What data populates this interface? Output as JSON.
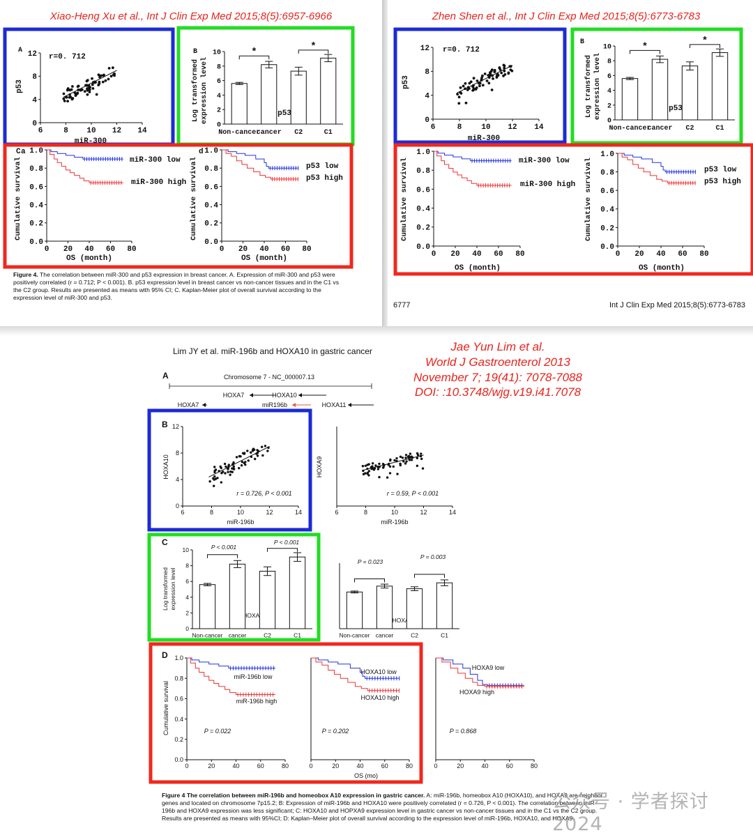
{
  "citations": {
    "top_left": "Xiao-Heng Xu et al., Int J Clin Exp Med 2015;8(5):6957-6966",
    "top_right": "Zhen Shen et al., Int J Clin Exp Med 2015;8(5):6773-6783",
    "bottom": [
      "Jae Yun Lim et al.",
      "World J Gastroenterol 2013",
      "November 7; 19(41): 7078-7088",
      "DOI: :10.3748/wjg.v19.i41.7078"
    ]
  },
  "colors": {
    "blue_box": "#1c2bd6",
    "green_box": "#22dd22",
    "red_box": "#f0281e",
    "low_curve": "#2233dd",
    "high_curve": "#ee3333",
    "citation": "#e8231c"
  },
  "xu": {
    "scatter": {
      "panel": "A",
      "r_label": "r=0. 712",
      "ylabel": "p53",
      "xlabel": "miR-300"
    },
    "bars": {
      "panel": "B",
      "ylabel": [
        "Log  transformed",
        "expression  level"
      ],
      "gene": "p53",
      "star": "*"
    },
    "km1": {
      "panel": "C",
      "sub": "a",
      "ylabel": "Cumulative  survival",
      "xlabel": "OS  (month)",
      "low": "miR-300  low",
      "high": "miR-300  high"
    },
    "km2": {
      "sub": "d",
      "ylabel": "Cumulative  survival",
      "xlabel": "OS  (month)",
      "low": "p53  low",
      "high": "p53  high"
    },
    "caption_title": "Figure 4.",
    "caption_text": " The correlation between miR-300 and p53 expression in breast cancer. A. Expression of miR-300 and p53 were positively correlated (r = 0.712; P < 0.001). B. p53 expression level in breast cancer vs non-cancer tissues and in the C1 vs the C2 group. Results are presented as means with 95% CI; C. Kaplan-Meier plot of overall survival according to the expression level of miR-300 and p53."
  },
  "shen": {
    "scatter": {
      "r_label": "r=0. 712",
      "ylabel": "p53",
      "xlabel": "miR-300"
    },
    "bars": {
      "panel": "B",
      "ylabel": [
        "Log  transformed",
        "expression  level"
      ],
      "gene": "p53",
      "star": "*"
    },
    "km1": {
      "ylabel": "Cumulative  survival",
      "xlabel": "OS  (month)",
      "low": "miR-300  low",
      "high": "miR-300  high"
    },
    "km2": {
      "ylabel": "Cumulative  survival",
      "xlabel": "OS  (month)",
      "low": "p53  low",
      "high": "p53  high"
    },
    "footer_page": "6777",
    "footer_journal": "Int J Clin Exp Med 2015;8(5):6773-6783"
  },
  "lim": {
    "running_head": "Lim JY et al. miR-196b and HOXA10 in gastric cancer",
    "panelA": {
      "label": "A",
      "chromosome": "Chromosome 7 - NC_000007.13",
      "genes": [
        "HOXA7",
        "HOXA10",
        "HOXA7",
        "miR196b",
        "HOXA11"
      ]
    },
    "panelB": {
      "label": "B",
      "left": {
        "ylabel": "HOXA10",
        "xlabel": "miR-196b",
        "stat": "r = 0.726, P < 0.001"
      },
      "right": {
        "ylabel": "HOXA9",
        "xlabel": "miR-196b",
        "stat": "r = 0.59, P < 0.001"
      }
    },
    "panelC": {
      "label": "C",
      "ylabel": [
        "Log transformed",
        "expression level"
      ],
      "left": {
        "gene": "HOXA10",
        "p1": "P < 0.001",
        "p2": "P < 0.001"
      },
      "right": {
        "gene": "HOXA9",
        "p1": "P = 0.023",
        "p2": "P = 0.003"
      }
    },
    "panelD": {
      "label": "D",
      "ylabel": "Cumulative survival",
      "xlabel": "OS (mo)",
      "km1": {
        "low": "miR-196b low",
        "high": "miR-196b high",
        "p": "P = 0.022"
      },
      "km2": {
        "low": "HOXA10 low",
        "high": "HOXA10 high",
        "p": "P = 0.202"
      },
      "km3": {
        "low": "HOXA9 low",
        "high": "HOXA9 high",
        "p": "P = 0.868"
      }
    },
    "caption_title": "Figure 4  The correlation between miR-196b and homeobox A10 expression in gastric cancer.",
    "caption_text": " A: miR-196b, homeobox A10 (HOXA10), and HOXA9 are neighbor genes and located on chromosome 7p15.2; B: Expression of miR-196b and HOXA10 were positively correlated (r = 0.726, P < 0.001). The correlation between miR-196b and HOXA9 expression was less significant; C: HOXA10 and HOPXA9 expression level in gastric cancer vs non-cancer tissues and in the C1 vs the C2 group. Results are presented as means with 95%CI; D: Kaplan–Meier plot of overall survival according to the expression level of miR-196b, HOXA10, and HOXA9."
  },
  "watermark": "公众号 · 学者探讨2024",
  "chart_data": [
    {
      "type": "scatter",
      "source": "xu-A",
      "x_ticks": [
        6,
        8,
        10,
        12,
        14
      ],
      "y_ticks": [
        0,
        4,
        8,
        12
      ],
      "xlim": [
        6,
        14
      ],
      "ylim": [
        0,
        12
      ]
    },
    {
      "type": "bar",
      "source": "xu-B",
      "categories": [
        "Non-cancer",
        "cancer",
        "C2",
        "C1"
      ],
      "values": [
        5.6,
        8.2,
        7.3,
        9.1
      ],
      "errors": [
        0.15,
        0.45,
        0.55,
        0.5
      ],
      "y_ticks": [
        0,
        2,
        4,
        6,
        8,
        10
      ],
      "ylim": [
        0,
        10
      ]
    },
    {
      "type": "line",
      "source": "xu-C-a",
      "x_ticks": [
        0,
        20,
        40,
        60,
        80
      ],
      "y_ticks": [
        "0.0",
        "0.2",
        "0.4",
        "0.6",
        "0.8",
        "1.0"
      ],
      "xlim": [
        0,
        80
      ],
      "ylim": [
        0,
        1
      ],
      "series": [
        {
          "name": "miR-300  low",
          "end": 0.9
        },
        {
          "name": "miR-300  high",
          "end": 0.64
        }
      ]
    },
    {
      "type": "line",
      "source": "xu-C-d",
      "x_ticks": [
        0,
        20,
        40,
        60,
        80
      ],
      "y_ticks": [
        "0.0",
        "0.2",
        "0.4",
        "0.6",
        "0.8",
        "1.0"
      ],
      "xlim": [
        0,
        80
      ],
      "ylim": [
        0,
        1
      ],
      "series": [
        {
          "name": "p53  low",
          "end": 0.8
        },
        {
          "name": "p53  high",
          "end": 0.68
        }
      ]
    },
    {
      "type": "scatter",
      "source": "lim-B-HOXA10",
      "x_ticks": [
        6,
        8,
        10,
        12,
        14
      ],
      "y_ticks": [
        0,
        4,
        8,
        12
      ],
      "xlim": [
        6,
        14
      ],
      "ylim": [
        0,
        12
      ]
    },
    {
      "type": "scatter",
      "source": "lim-B-HOXA9",
      "x_ticks": [
        6,
        8,
        10,
        12,
        14
      ],
      "xlim": [
        6,
        14
      ],
      "ylim": [
        0,
        12
      ]
    },
    {
      "type": "bar",
      "source": "lim-C-HOXA10",
      "categories": [
        "Non-cancer",
        "cancer",
        "C2",
        "C1"
      ],
      "values": [
        5.6,
        8.2,
        7.3,
        9.1
      ],
      "y_ticks": [
        0,
        2,
        4,
        6,
        8,
        10
      ],
      "ylim": [
        0,
        10
      ]
    },
    {
      "type": "bar",
      "source": "lim-C-HOXA9",
      "categories": [
        "Non-cancer",
        "cancer",
        "C2",
        "C1"
      ],
      "values": [
        5.6,
        6.5,
        6.1,
        7.0
      ],
      "ylim": [
        0,
        10
      ]
    },
    {
      "type": "line",
      "source": "lim-D-miR196b",
      "x_ticks": [
        0,
        20,
        40,
        60,
        80
      ],
      "y_ticks": [
        "0.0",
        "0.2",
        "0.4",
        "0.6",
        "0.8",
        "1.0"
      ],
      "xlim": [
        0,
        80
      ],
      "ylim": [
        0,
        1
      ],
      "series": [
        {
          "name": "miR-196b low",
          "end": 0.9
        },
        {
          "name": "miR-196b high",
          "end": 0.64
        }
      ]
    },
    {
      "type": "line",
      "source": "lim-D-HOXA10",
      "x_ticks": [
        0,
        20,
        40,
        60,
        80
      ],
      "xlim": [
        0,
        80
      ],
      "ylim": [
        0,
        1
      ],
      "series": [
        {
          "name": "HOXA10 low",
          "end": 0.8
        },
        {
          "name": "HOXA10 high",
          "end": 0.67
        }
      ]
    },
    {
      "type": "line",
      "source": "lim-D-HOXA9",
      "x_ticks": [
        0,
        20,
        40,
        60,
        80
      ],
      "xlim": [
        0,
        80
      ],
      "ylim": [
        0,
        1
      ],
      "series": [
        {
          "name": "HOXA9 low",
          "end": 0.73
        },
        {
          "name": "HOXA9 high",
          "end": 0.72
        }
      ]
    }
  ]
}
